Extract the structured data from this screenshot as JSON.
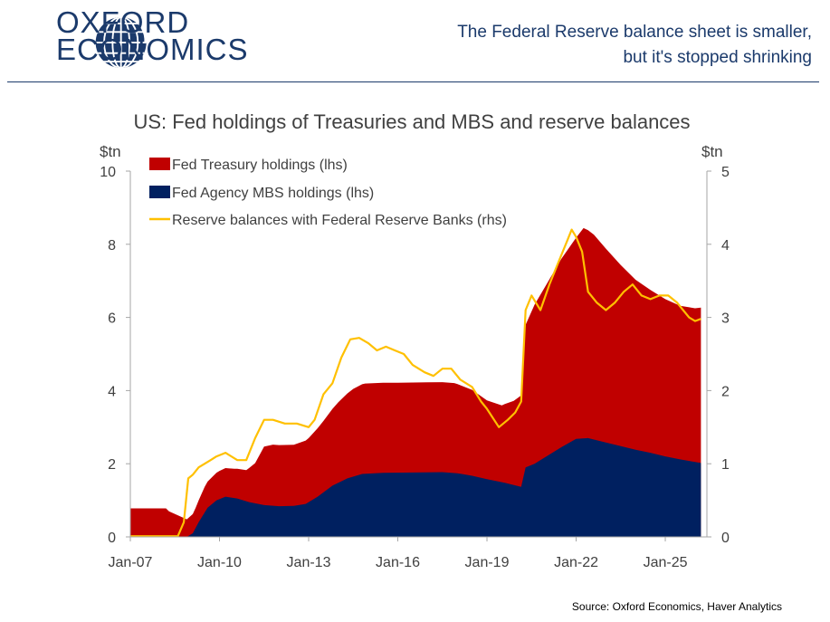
{
  "header": {
    "logo_line1": "OXFORD",
    "logo_line2": "ECONOMICS",
    "headline": "The Federal Reserve balance sheet is smaller, but it's stopped shrinking"
  },
  "footer": {
    "source": "Source: Oxford Economics, Haver Analytics"
  },
  "colors": {
    "brand": "#1b3a6b",
    "treasury": "#c00000",
    "mbs": "#002060",
    "reserves": "#ffc000"
  },
  "chart_data": {
    "type": "area",
    "title": "US: Fed holdings of Treasuries and MBS and reserve balances",
    "ylabel_left": "$tn",
    "ylabel_right": "$tn",
    "ylim_left": [
      0,
      10
    ],
    "ylim_right": [
      0,
      5
    ],
    "yticks_left": [
      0,
      2,
      4,
      6,
      8,
      10
    ],
    "yticks_right": [
      0,
      1,
      2,
      3,
      4,
      5
    ],
    "xlim": [
      2007.0,
      2026.4
    ],
    "xticks": [
      {
        "x": 2007.0,
        "label": "Jan-07"
      },
      {
        "x": 2010.0,
        "label": "Jan-10"
      },
      {
        "x": 2013.0,
        "label": "Jan-13"
      },
      {
        "x": 2016.0,
        "label": "Jan-16"
      },
      {
        "x": 2019.0,
        "label": "Jan-19"
      },
      {
        "x": 2022.0,
        "label": "Jan-22"
      },
      {
        "x": 2025.0,
        "label": "Jan-25"
      }
    ],
    "legend": [
      {
        "name": "Fed Treasury holdings (lhs)",
        "marker": "box",
        "color": "#c00000"
      },
      {
        "name": "Fed Agency MBS holdings (lhs)",
        "marker": "box",
        "color": "#002060"
      },
      {
        "name": "Reserve balances with Federal Reserve Banks (rhs)",
        "marker": "line",
        "color": "#ffc000"
      }
    ],
    "series": [
      {
        "name": "Fed Treasury holdings (lhs)",
        "axis": "left",
        "stacked": true,
        "color": "#c00000",
        "points": [
          [
            2007.0,
            0.78
          ],
          [
            2008.2,
            0.78
          ],
          [
            2008.3,
            0.7
          ],
          [
            2008.9,
            0.48
          ],
          [
            2009.2,
            0.55
          ],
          [
            2009.5,
            0.7
          ],
          [
            2009.8,
            0.74
          ],
          [
            2010.0,
            0.77
          ],
          [
            2010.5,
            0.8
          ],
          [
            2010.9,
            0.85
          ],
          [
            2011.2,
            1.1
          ],
          [
            2011.5,
            1.6
          ],
          [
            2011.8,
            1.67
          ],
          [
            2012.5,
            1.67
          ],
          [
            2013.0,
            1.75
          ],
          [
            2013.5,
            1.95
          ],
          [
            2014.0,
            2.2
          ],
          [
            2014.5,
            2.4
          ],
          [
            2014.9,
            2.47
          ],
          [
            2016.0,
            2.46
          ],
          [
            2017.0,
            2.46
          ],
          [
            2017.9,
            2.46
          ],
          [
            2018.5,
            2.35
          ],
          [
            2019.0,
            2.15
          ],
          [
            2019.5,
            2.1
          ],
          [
            2019.9,
            2.3
          ],
          [
            2020.15,
            2.5
          ],
          [
            2020.3,
            3.9
          ],
          [
            2020.6,
            4.35
          ],
          [
            2021.0,
            4.7
          ],
          [
            2021.5,
            5.15
          ],
          [
            2022.0,
            5.5
          ],
          [
            2022.25,
            5.75
          ],
          [
            2022.6,
            5.6
          ],
          [
            2023.0,
            5.3
          ],
          [
            2023.5,
            4.95
          ],
          [
            2024.0,
            4.65
          ],
          [
            2024.5,
            4.45
          ],
          [
            2025.0,
            4.3
          ],
          [
            2025.5,
            4.2
          ],
          [
            2026.0,
            4.2
          ],
          [
            2026.2,
            4.25
          ]
        ]
      },
      {
        "name": "Fed Agency MBS holdings (lhs)",
        "axis": "left",
        "stacked": true,
        "color": "#002060",
        "points": [
          [
            2007.0,
            0.0
          ],
          [
            2008.9,
            0.0
          ],
          [
            2009.1,
            0.1
          ],
          [
            2009.3,
            0.4
          ],
          [
            2009.6,
            0.8
          ],
          [
            2009.9,
            1.0
          ],
          [
            2010.2,
            1.1
          ],
          [
            2010.6,
            1.05
          ],
          [
            2011.0,
            0.95
          ],
          [
            2011.5,
            0.87
          ],
          [
            2012.0,
            0.84
          ],
          [
            2012.5,
            0.85
          ],
          [
            2012.9,
            0.9
          ],
          [
            2013.3,
            1.1
          ],
          [
            2013.8,
            1.4
          ],
          [
            2014.3,
            1.6
          ],
          [
            2014.8,
            1.72
          ],
          [
            2015.5,
            1.75
          ],
          [
            2016.5,
            1.76
          ],
          [
            2017.5,
            1.77
          ],
          [
            2018.0,
            1.74
          ],
          [
            2018.5,
            1.67
          ],
          [
            2019.0,
            1.58
          ],
          [
            2019.6,
            1.48
          ],
          [
            2020.15,
            1.37
          ],
          [
            2020.3,
            1.9
          ],
          [
            2020.6,
            2.0
          ],
          [
            2021.0,
            2.2
          ],
          [
            2021.5,
            2.45
          ],
          [
            2022.0,
            2.68
          ],
          [
            2022.4,
            2.7
          ],
          [
            2023.0,
            2.58
          ],
          [
            2023.5,
            2.48
          ],
          [
            2024.0,
            2.38
          ],
          [
            2024.5,
            2.3
          ],
          [
            2025.0,
            2.2
          ],
          [
            2025.5,
            2.12
          ],
          [
            2026.0,
            2.05
          ],
          [
            2026.2,
            2.02
          ]
        ]
      },
      {
        "name": "Reserve balances with Federal Reserve Banks (rhs)",
        "axis": "right",
        "stacked": false,
        "color": "#ffc000",
        "points": [
          [
            2007.0,
            0.01
          ],
          [
            2008.6,
            0.01
          ],
          [
            2008.8,
            0.2
          ],
          [
            2008.95,
            0.8
          ],
          [
            2009.1,
            0.85
          ],
          [
            2009.3,
            0.95
          ],
          [
            2009.5,
            1.0
          ],
          [
            2009.7,
            1.05
          ],
          [
            2009.9,
            1.1
          ],
          [
            2010.2,
            1.15
          ],
          [
            2010.6,
            1.05
          ],
          [
            2010.9,
            1.05
          ],
          [
            2011.2,
            1.35
          ],
          [
            2011.5,
            1.6
          ],
          [
            2011.8,
            1.6
          ],
          [
            2012.2,
            1.55
          ],
          [
            2012.6,
            1.55
          ],
          [
            2013.0,
            1.5
          ],
          [
            2013.2,
            1.6
          ],
          [
            2013.5,
            1.95
          ],
          [
            2013.8,
            2.1
          ],
          [
            2014.1,
            2.45
          ],
          [
            2014.4,
            2.7
          ],
          [
            2014.7,
            2.72
          ],
          [
            2015.0,
            2.65
          ],
          [
            2015.3,
            2.55
          ],
          [
            2015.6,
            2.6
          ],
          [
            2015.9,
            2.55
          ],
          [
            2016.2,
            2.5
          ],
          [
            2016.5,
            2.35
          ],
          [
            2016.9,
            2.25
          ],
          [
            2017.2,
            2.2
          ],
          [
            2017.5,
            2.3
          ],
          [
            2017.8,
            2.3
          ],
          [
            2018.1,
            2.15
          ],
          [
            2018.5,
            2.05
          ],
          [
            2018.8,
            1.85
          ],
          [
            2019.0,
            1.75
          ],
          [
            2019.4,
            1.5
          ],
          [
            2019.7,
            1.6
          ],
          [
            2019.95,
            1.7
          ],
          [
            2020.15,
            1.85
          ],
          [
            2020.3,
            3.1
          ],
          [
            2020.5,
            3.3
          ],
          [
            2020.8,
            3.1
          ],
          [
            2021.1,
            3.45
          ],
          [
            2021.4,
            3.75
          ],
          [
            2021.7,
            4.05
          ],
          [
            2021.85,
            4.2
          ],
          [
            2022.0,
            4.1
          ],
          [
            2022.2,
            3.9
          ],
          [
            2022.4,
            3.35
          ],
          [
            2022.7,
            3.2
          ],
          [
            2023.0,
            3.1
          ],
          [
            2023.3,
            3.2
          ],
          [
            2023.6,
            3.35
          ],
          [
            2023.9,
            3.45
          ],
          [
            2024.2,
            3.3
          ],
          [
            2024.5,
            3.25
          ],
          [
            2024.8,
            3.3
          ],
          [
            2025.1,
            3.3
          ],
          [
            2025.4,
            3.2
          ],
          [
            2025.6,
            3.1
          ],
          [
            2025.8,
            3.0
          ],
          [
            2026.0,
            2.95
          ],
          [
            2026.2,
            2.98
          ]
        ]
      }
    ]
  }
}
